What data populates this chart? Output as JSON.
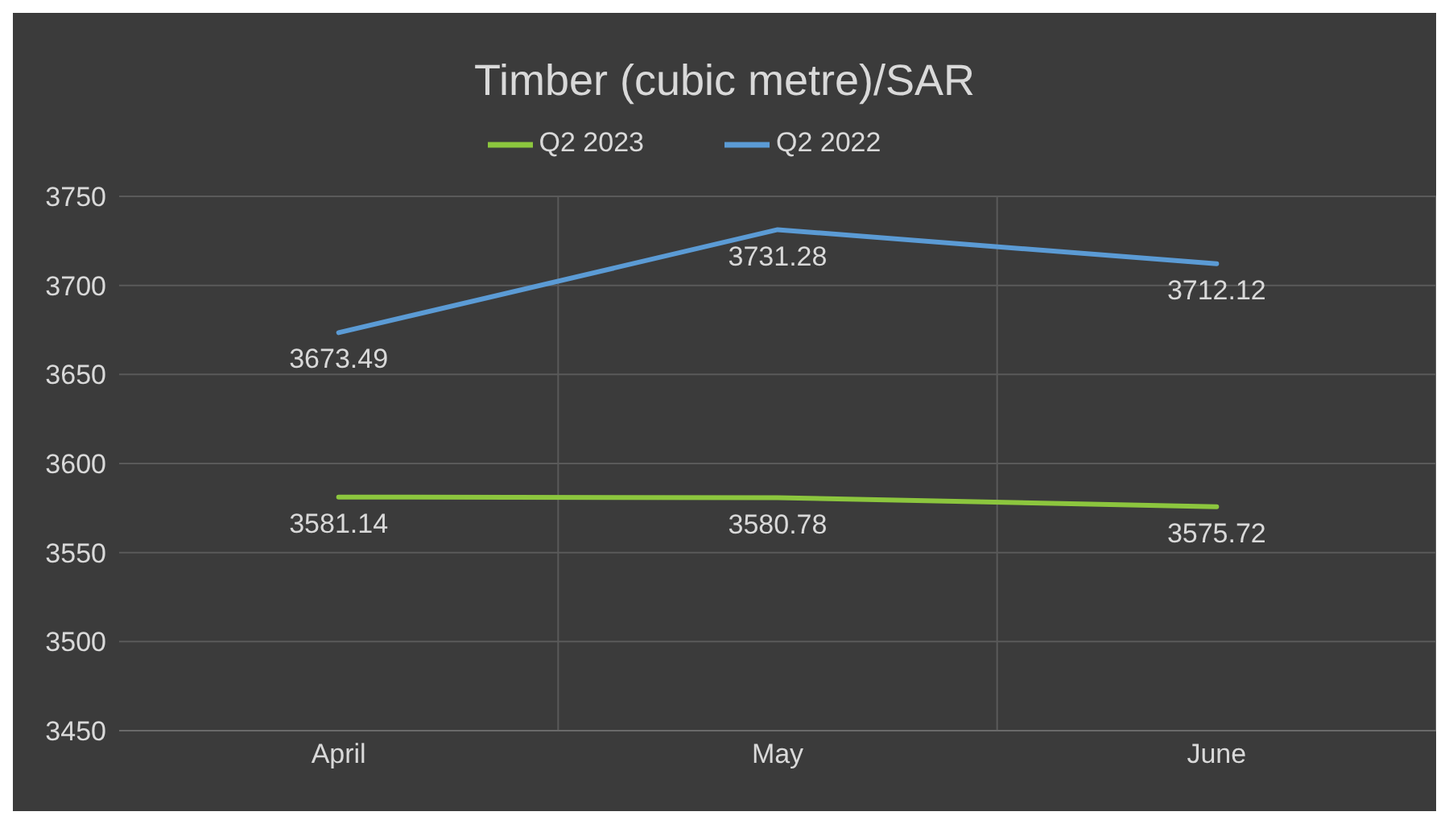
{
  "chart_data": {
    "type": "line",
    "title": "Timber (cubic metre)/SAR",
    "categories": [
      "April",
      "May",
      "June"
    ],
    "series": [
      {
        "name": "Q2 2023",
        "color": "#8cc63e",
        "values": [
          3581.14,
          3580.78,
          3575.72
        ]
      },
      {
        "name": "Q2 2022",
        "color": "#5b9bd5",
        "values": [
          3673.49,
          3731.28,
          3712.12
        ]
      }
    ],
    "ylim": [
      3450,
      3750
    ],
    "yticks": [
      3450,
      3500,
      3550,
      3600,
      3650,
      3700,
      3750
    ],
    "grid": true,
    "legend": "top",
    "data_labels": true,
    "marker": "none",
    "line_style": "solid"
  }
}
